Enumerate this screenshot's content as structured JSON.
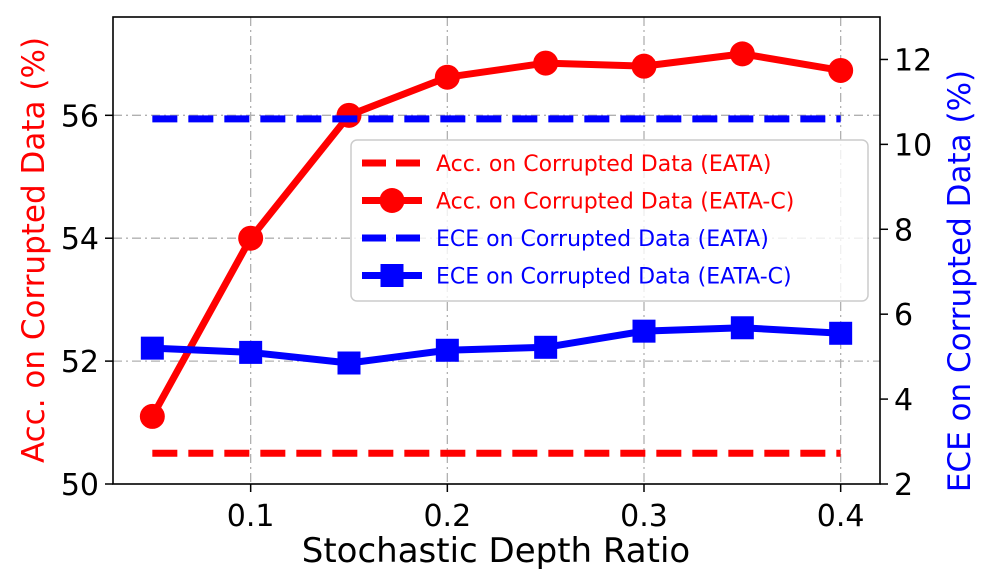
{
  "chart_data": {
    "type": "line",
    "title": "",
    "xlabel": "Stochastic Depth Ratio",
    "ylabel_left": "Acc. on Corrupted Data (%)",
    "ylabel_right": "ECE on Corrupted Data (%)",
    "xlim": [
      0.03,
      0.42
    ],
    "ylim_left": [
      50,
      57.6
    ],
    "ylim_right": [
      2,
      13
    ],
    "xticks": [
      0.1,
      0.2,
      0.3,
      0.4
    ],
    "xtick_labels": [
      "0.1",
      "0.2",
      "0.3",
      "0.4"
    ],
    "yticks_left": [
      50,
      52,
      54,
      56
    ],
    "ytick_labels_left": [
      "50",
      "52",
      "54",
      "56"
    ],
    "yticks_right": [
      2,
      4,
      6,
      8,
      10,
      12
    ],
    "ytick_labels_right": [
      "2",
      "4",
      "6",
      "8",
      "10",
      "12"
    ],
    "grid": true,
    "legend_position": "center-right",
    "colors": {
      "acc": "#ff0000",
      "ece": "#0000ff",
      "grid": "#b0b0b0",
      "axis": "#000000"
    },
    "x": [
      0.05,
      0.1,
      0.15,
      0.2,
      0.25,
      0.3,
      0.35,
      0.4
    ],
    "series": [
      {
        "name": "Acc. on Corrupted Data (EATA)",
        "axis": "left",
        "style": "dashed",
        "marker": "none",
        "color": "#ff0000",
        "values": [
          50.5,
          50.5,
          50.5,
          50.5,
          50.5,
          50.5,
          50.5,
          50.5
        ]
      },
      {
        "name": "Acc. on Corrupted Data (EATA-C)",
        "axis": "left",
        "style": "solid",
        "marker": "circle",
        "color": "#ff0000",
        "values": [
          51.1,
          54.0,
          56.0,
          56.62,
          56.85,
          56.8,
          57.0,
          56.73
        ]
      },
      {
        "name": "ECE on Corrupted Data (EATA)",
        "axis": "right",
        "style": "dashed",
        "marker": "none",
        "color": "#0000ff",
        "values": [
          10.6,
          10.6,
          10.6,
          10.6,
          10.6,
          10.6,
          10.6,
          10.6
        ]
      },
      {
        "name": "ECE on Corrupted Data (EATA-C)",
        "axis": "right",
        "style": "solid",
        "marker": "square",
        "color": "#0000ff",
        "values": [
          5.2,
          5.1,
          4.85,
          5.15,
          5.22,
          5.6,
          5.68,
          5.55
        ]
      }
    ]
  }
}
